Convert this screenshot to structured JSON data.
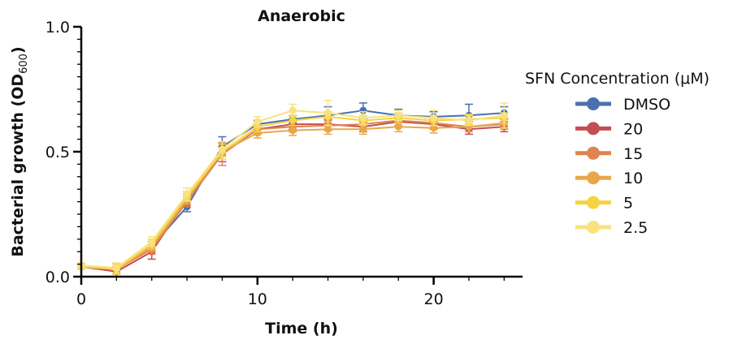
{
  "chart_data": {
    "type": "line",
    "title": "Anaerobic",
    "xlabel": "Time (h)",
    "ylabel_main": "Bacterial growth (OD",
    "ylabel_sub": "600",
    "ylabel_close": ")",
    "xlim": [
      0,
      25
    ],
    "ylim": [
      0,
      1.0
    ],
    "x_ticks": [
      0,
      10,
      20
    ],
    "x_tick_labels": [
      "0",
      "10",
      "20"
    ],
    "y_ticks": [
      0,
      0.5,
      1.0
    ],
    "y_tick_labels": [
      "0.0",
      "0.5",
      "1.0"
    ],
    "legend_title": "SFN Concentration (μM)",
    "legend_placement": "right",
    "x": [
      0,
      2,
      4,
      6,
      8,
      10,
      12,
      14,
      16,
      18,
      20,
      22,
      24
    ],
    "series": [
      {
        "name": "DMSO",
        "color": "#4a71ad",
        "values": [
          0.04,
          0.03,
          0.12,
          0.28,
          0.52,
          0.61,
          0.63,
          0.645,
          0.665,
          0.645,
          0.64,
          0.645,
          0.655
        ],
        "errors": [
          0.01,
          0.02,
          0.02,
          0.02,
          0.04,
          0.015,
          0.015,
          0.035,
          0.03,
          0.025,
          0.02,
          0.045,
          0.025
        ]
      },
      {
        "name": "20",
        "color": "#c44e52",
        "values": [
          0.04,
          0.02,
          0.1,
          0.31,
          0.49,
          0.59,
          0.61,
          0.61,
          0.6,
          0.62,
          0.61,
          0.59,
          0.6
        ],
        "errors": [
          0.01,
          0.02,
          0.03,
          0.02,
          0.03,
          0.02,
          0.02,
          0.02,
          0.02,
          0.02,
          0.02,
          0.02,
          0.02
        ]
      },
      {
        "name": "15",
        "color": "#e0834f",
        "values": [
          0.04,
          0.03,
          0.11,
          0.3,
          0.49,
          0.59,
          0.6,
          0.605,
          0.61,
          0.625,
          0.615,
          0.6,
          0.61
        ],
        "errors": [
          0.01,
          0.02,
          0.02,
          0.02,
          0.045,
          0.02,
          0.02,
          0.02,
          0.02,
          0.02,
          0.025,
          0.02,
          0.02
        ]
      },
      {
        "name": "10",
        "color": "#e8a84a",
        "values": [
          0.04,
          0.03,
          0.12,
          0.31,
          0.5,
          0.575,
          0.585,
          0.59,
          0.59,
          0.6,
          0.595,
          0.6,
          0.615
        ],
        "errors": [
          0.01,
          0.02,
          0.02,
          0.02,
          0.03,
          0.02,
          0.02,
          0.02,
          0.02,
          0.02,
          0.02,
          0.02,
          0.02
        ]
      },
      {
        "name": "5",
        "color": "#f5d342",
        "values": [
          0.04,
          0.03,
          0.13,
          0.32,
          0.5,
          0.6,
          0.625,
          0.64,
          0.625,
          0.635,
          0.625,
          0.63,
          0.635
        ],
        "errors": [
          0.01,
          0.02,
          0.02,
          0.02,
          0.03,
          0.02,
          0.02,
          0.02,
          0.02,
          0.02,
          0.02,
          0.02,
          0.02
        ]
      },
      {
        "name": "2.5",
        "color": "#f7e27f",
        "values": [
          0.045,
          0.035,
          0.14,
          0.33,
          0.51,
          0.62,
          0.665,
          0.655,
          0.635,
          0.645,
          0.635,
          0.625,
          0.645
        ],
        "errors": [
          0.01,
          0.02,
          0.02,
          0.025,
          0.03,
          0.02,
          0.025,
          0.05,
          0.025,
          0.02,
          0.03,
          0.02,
          0.05
        ]
      }
    ]
  }
}
